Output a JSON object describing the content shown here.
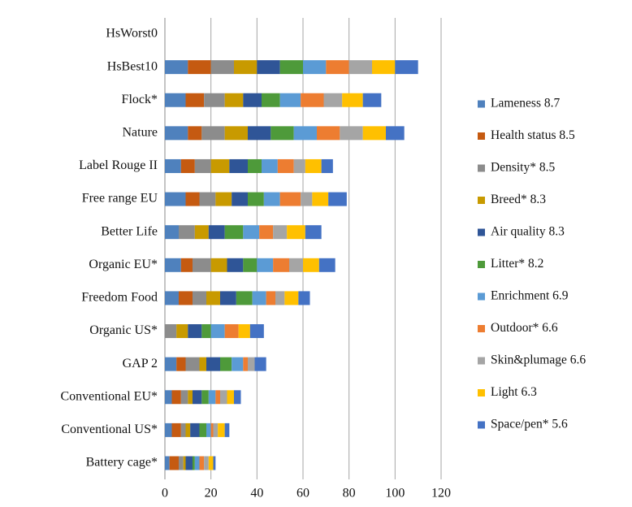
{
  "chart_data": {
    "type": "stacked-barh",
    "categories": [
      "HsWorst0",
      "HsBest10",
      "Flock*",
      "Nature",
      "Label Rouge II",
      "Free range EU",
      "Better Life",
      "Organic EU*",
      "Freedom Food",
      "Organic US*",
      "GAP 2",
      "Conventional EU*",
      "Conventional US*",
      "Battery cage*"
    ],
    "series": [
      {
        "name": "Lameness 8.7",
        "color": "#4f81bd",
        "values": [
          0,
          10,
          9,
          10,
          7,
          9,
          6,
          7,
          6,
          0,
          5,
          3,
          3,
          2
        ]
      },
      {
        "name": "Health status 8.5",
        "color": "#c55a11",
        "values": [
          0,
          10,
          8,
          6,
          6,
          6,
          0,
          5,
          6,
          0,
          4,
          4,
          4,
          4
        ]
      },
      {
        "name": "Density* 8.5",
        "color": "#8c8c8c",
        "values": [
          0,
          10,
          9,
          10,
          7,
          7,
          7,
          8,
          6,
          5,
          6,
          3,
          2,
          2
        ]
      },
      {
        "name": "Breed* 8.3",
        "color": "#c89a00",
        "values": [
          0,
          10,
          8,
          10,
          8,
          7,
          6,
          7,
          6,
          5,
          3,
          2,
          2,
          1
        ]
      },
      {
        "name": "Air quality 8.3",
        "color": "#2f5597",
        "values": [
          0,
          10,
          8,
          10,
          8,
          7,
          7,
          7,
          7,
          6,
          6,
          4,
          4,
          3
        ]
      },
      {
        "name": "Litter* 8.2",
        "color": "#4e9a3a",
        "values": [
          0,
          10,
          8,
          10,
          6,
          7,
          8,
          6,
          7,
          4,
          5,
          3,
          3,
          1
        ]
      },
      {
        "name": "Enrichment 6.9",
        "color": "#5b9bd5",
        "values": [
          0,
          10,
          9,
          10,
          7,
          7,
          7,
          7,
          6,
          6,
          5,
          3,
          2,
          2
        ]
      },
      {
        "name": "Outdoor* 6.6",
        "color": "#ed7d31",
        "values": [
          0,
          10,
          10,
          10,
          7,
          9,
          6,
          7,
          4,
          6,
          2,
          2,
          1,
          2
        ]
      },
      {
        "name": "Skin&plumage 6.6",
        "color": "#a5a5a5",
        "values": [
          0,
          10,
          8,
          10,
          5,
          5,
          6,
          6,
          4,
          0,
          3,
          3,
          2,
          2
        ]
      },
      {
        "name": "Light 6.3",
        "color": "#ffc000",
        "values": [
          0,
          10,
          9,
          10,
          7,
          7,
          8,
          7,
          6,
          5,
          0,
          3,
          3,
          2
        ]
      },
      {
        "name": "Space/pen* 5.6",
        "color": "#4472c4",
        "values": [
          0,
          10,
          8,
          8,
          5,
          8,
          7,
          7,
          5,
          6,
          5,
          3,
          2,
          1
        ]
      }
    ],
    "xlim": [
      0,
      120
    ],
    "xticks": [
      0,
      20,
      40,
      60,
      80,
      100,
      120
    ],
    "grid": true,
    "legend": "right"
  }
}
